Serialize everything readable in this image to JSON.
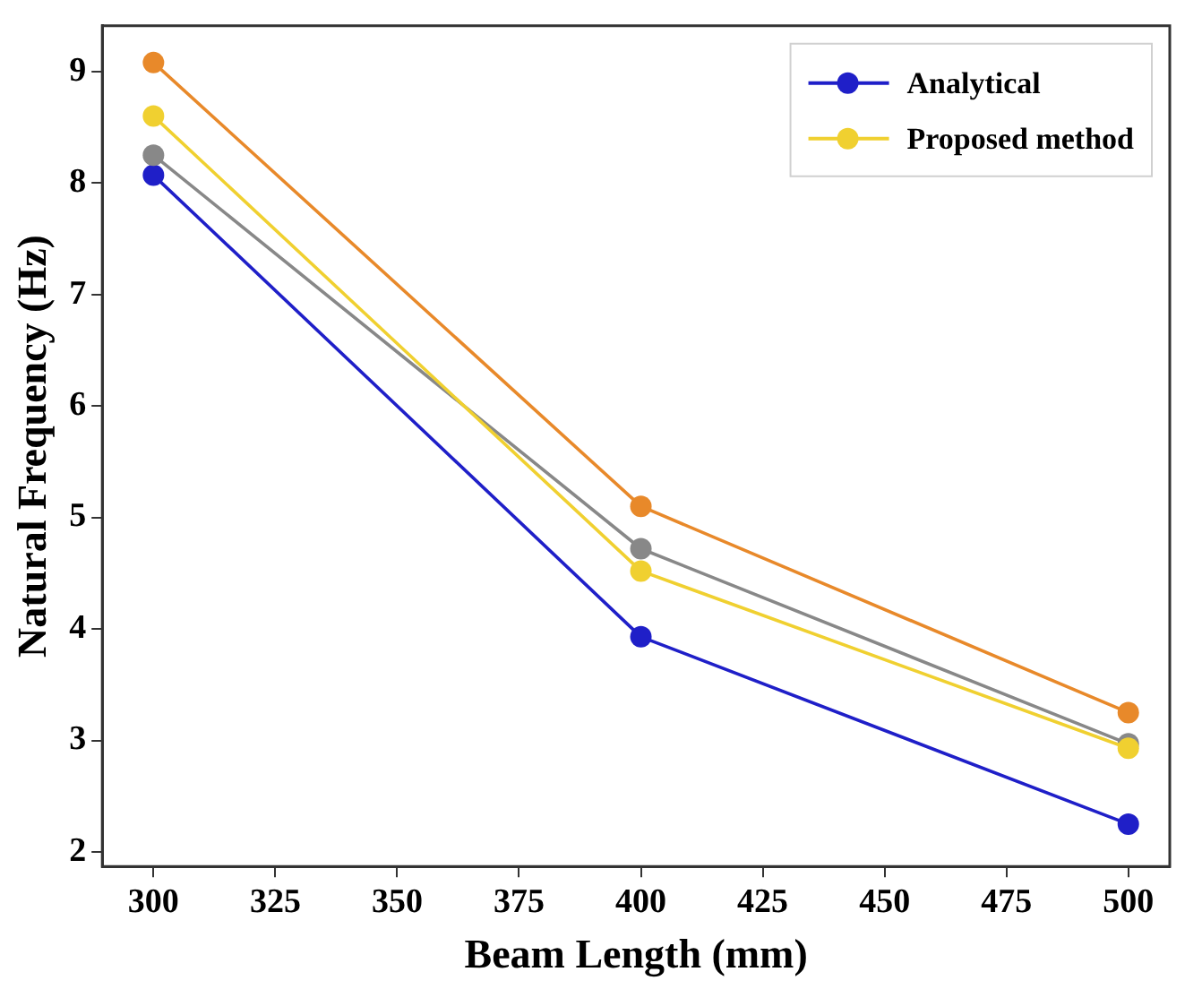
{
  "chart_data": {
    "type": "line",
    "xlabel": "Beam Length (mm)",
    "ylabel": "Natural Frequency (Hz)",
    "x": [
      300,
      400,
      500
    ],
    "series": [
      {
        "name": "Analytical",
        "color": "#1f1fc8",
        "values": [
          8.07,
          3.93,
          2.25
        ]
      },
      {
        "color": "#e8892a",
        "values": [
          9.08,
          5.1,
          3.25
        ]
      },
      {
        "color": "#888888",
        "values": [
          8.25,
          4.72,
          2.97
        ]
      },
      {
        "name": "Proposed method",
        "color": "#f0d030",
        "values": [
          8.6,
          4.52,
          2.93
        ]
      }
    ],
    "xlim": [
      289.5,
      508.5
    ],
    "xticks": [
      300,
      325,
      350,
      375,
      400,
      425,
      450,
      475,
      500
    ],
    "ylim": [
      1.87,
      9.41
    ],
    "yticks": [
      2,
      3,
      4,
      5,
      6,
      7,
      8,
      9
    ],
    "grid": false,
    "legend": "top right",
    "marker": "circle",
    "line_style": "solid"
  }
}
